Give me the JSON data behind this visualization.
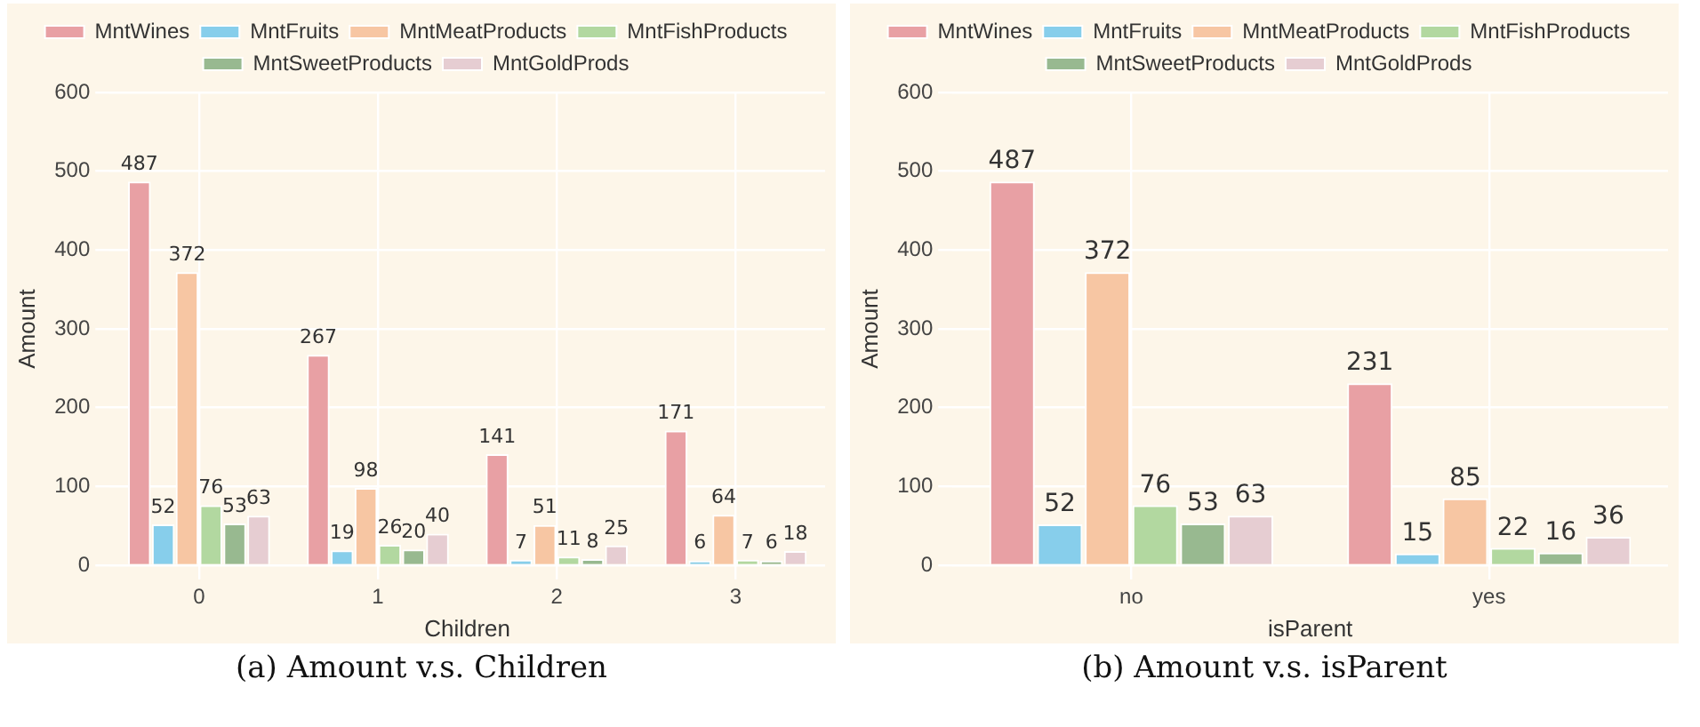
{
  "chart_data": [
    {
      "type": "bar",
      "xlabel": "Children",
      "ylabel": "Amount",
      "categories": [
        "0",
        "1",
        "2",
        "3"
      ],
      "ylim": [
        0,
        600
      ],
      "yticks": [
        0,
        100,
        200,
        300,
        400,
        500,
        600
      ],
      "grid": true,
      "legend": "top",
      "data_labels": true,
      "annotations": [
        "(a) Amount v.s. Children"
      ],
      "series": [
        {
          "name": "MntWines",
          "color": "#e8a0a4",
          "values": [
            487,
            267,
            141,
            171
          ]
        },
        {
          "name": "MntFruits",
          "color": "#87ceeb",
          "values": [
            52,
            19,
            7,
            6
          ]
        },
        {
          "name": "MntMeatProducts",
          "color": "#f7c6a3",
          "values": [
            372,
            98,
            51,
            64
          ]
        },
        {
          "name": "MntFishProducts",
          "color": "#b2d8a0",
          "values": [
            76,
            26,
            11,
            7
          ]
        },
        {
          "name": "MntSweetProducts",
          "color": "#98b990",
          "values": [
            53,
            20,
            8,
            6
          ]
        },
        {
          "name": "MntGoldProds",
          "color": "#e6cdd2",
          "values": [
            63,
            40,
            25,
            18
          ]
        }
      ]
    },
    {
      "type": "bar",
      "xlabel": "isParent",
      "ylabel": "Amount",
      "categories": [
        "no",
        "yes"
      ],
      "ylim": [
        0,
        600
      ],
      "yticks": [
        0,
        100,
        200,
        300,
        400,
        500,
        600
      ],
      "grid": true,
      "legend": "top",
      "data_labels": true,
      "annotations": [
        "(b) Amount v.s. isParent"
      ],
      "series": [
        {
          "name": "MntWines",
          "color": "#e8a0a4",
          "values": [
            487,
            231
          ]
        },
        {
          "name": "MntFruits",
          "color": "#87ceeb",
          "values": [
            52,
            15
          ]
        },
        {
          "name": "MntMeatProducts",
          "color": "#f7c6a3",
          "values": [
            372,
            85
          ]
        },
        {
          "name": "MntFishProducts",
          "color": "#b2d8a0",
          "values": [
            76,
            22
          ]
        },
        {
          "name": "MntSweetProducts",
          "color": "#98b990",
          "values": [
            53,
            16
          ]
        },
        {
          "name": "MntGoldProds",
          "color": "#e6cdd2",
          "values": [
            63,
            36
          ]
        }
      ]
    }
  ]
}
